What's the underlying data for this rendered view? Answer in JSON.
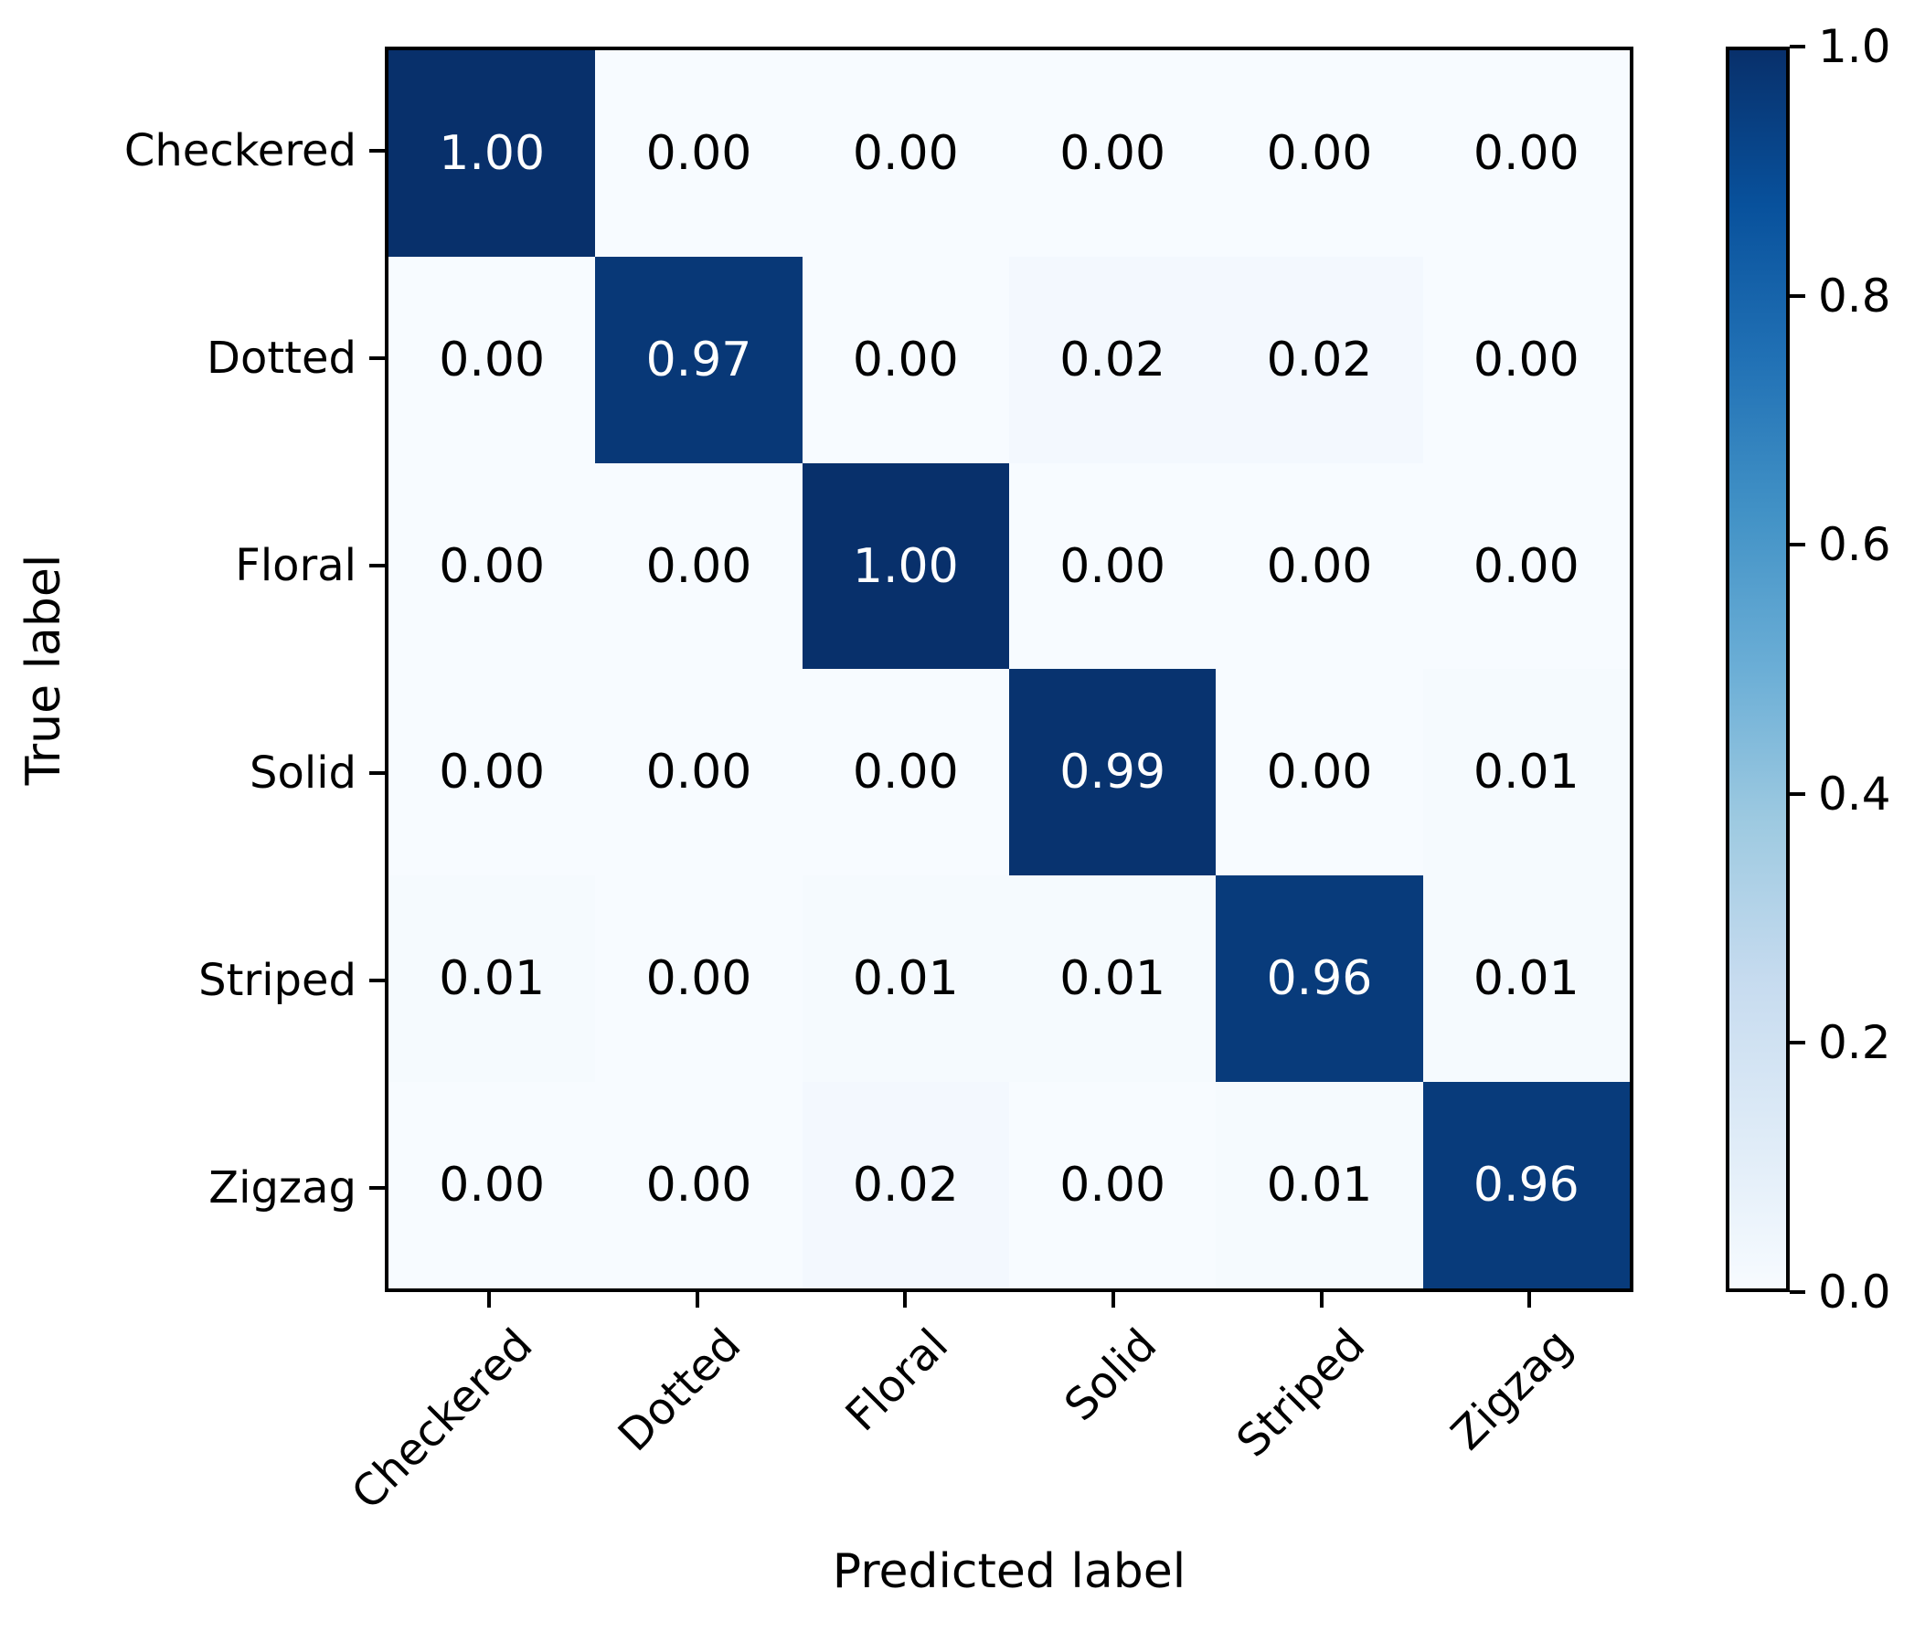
{
  "figure": {
    "background_color": "#ffffff",
    "text_color": "#000000"
  },
  "chart_data": {
    "type": "heatmap",
    "title": "",
    "xlabel": "Predicted label",
    "ylabel": "True label",
    "categories": [
      "Checkered",
      "Dotted",
      "Floral",
      "Solid",
      "Striped",
      "Zigzag"
    ],
    "row_labels": [
      "Checkered",
      "Dotted",
      "Floral",
      "Solid",
      "Striped",
      "Zigzag"
    ],
    "col_labels": [
      "Checkered",
      "Dotted",
      "Floral",
      "Solid",
      "Striped",
      "Zigzag"
    ],
    "matrix": [
      [
        1.0,
        0.0,
        0.0,
        0.0,
        0.0,
        0.0
      ],
      [
        0.0,
        0.97,
        0.0,
        0.02,
        0.02,
        0.0
      ],
      [
        0.0,
        0.0,
        1.0,
        0.0,
        0.0,
        0.0
      ],
      [
        0.0,
        0.0,
        0.0,
        0.99,
        0.0,
        0.01
      ],
      [
        0.01,
        0.0,
        0.01,
        0.01,
        0.96,
        0.01
      ],
      [
        0.0,
        0.0,
        0.02,
        0.0,
        0.01,
        0.96
      ]
    ],
    "value_format_decimals": 2,
    "value_range": [
      0,
      1
    ],
    "grid": false,
    "colorbar": {
      "tick_labels": [
        "1.0",
        "0.8",
        "0.6",
        "0.4",
        "0.2",
        "0.0"
      ],
      "tick_values": [
        1.0,
        0.8,
        0.6,
        0.4,
        0.2,
        0.0
      ],
      "colormap_name": "Blues",
      "colormap_stops": [
        {
          "pos": 0.0,
          "hex": "#f7fbff"
        },
        {
          "pos": 0.125,
          "hex": "#deebf7"
        },
        {
          "pos": 0.25,
          "hex": "#c6dbef"
        },
        {
          "pos": 0.375,
          "hex": "#9ecae1"
        },
        {
          "pos": 0.5,
          "hex": "#6baed6"
        },
        {
          "pos": 0.625,
          "hex": "#4292c6"
        },
        {
          "pos": 0.75,
          "hex": "#2171b5"
        },
        {
          "pos": 0.875,
          "hex": "#08519c"
        },
        {
          "pos": 1.0,
          "hex": "#08306b"
        }
      ],
      "text_color_threshold": 0.5,
      "cell_text_color_high": "#ffffff",
      "cell_text_color_low": "#000000"
    }
  }
}
